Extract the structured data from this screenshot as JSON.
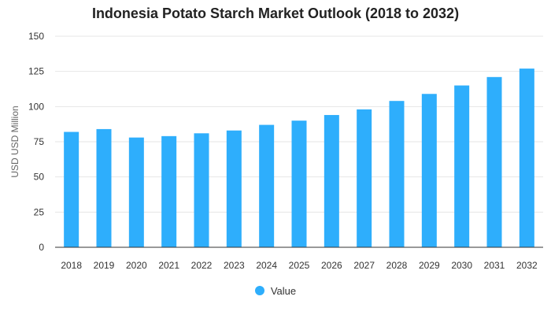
{
  "chart_data": {
    "type": "bar",
    "title": "Indonesia Potato Starch Market Outlook (2018 to 2032)",
    "ylabel": "USD USD Million",
    "xlabel": "",
    "categories": [
      "2018",
      "2019",
      "2020",
      "2021",
      "2022",
      "2023",
      "2024",
      "2025",
      "2026",
      "2027",
      "2028",
      "2029",
      "2030",
      "2031",
      "2032"
    ],
    "series": [
      {
        "name": "Value",
        "values": [
          82,
          84,
          78,
          79,
          81,
          83,
          87,
          90,
          94,
          98,
          104,
          109,
          115,
          121,
          127
        ]
      }
    ],
    "ylim": [
      0,
      150
    ],
    "yticks": [
      0,
      25,
      50,
      75,
      100,
      125,
      150
    ],
    "grid": true,
    "legend_position": "bottom",
    "colors": {
      "bar": "#2eaefc",
      "grid": "#e6e6e6",
      "axis": "#333333"
    }
  }
}
